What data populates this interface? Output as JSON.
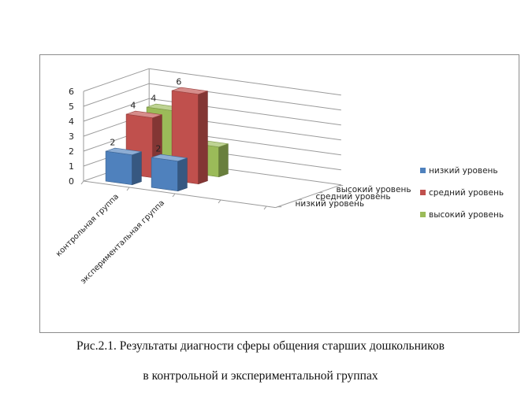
{
  "chart_data": {
    "type": "bar",
    "style": "3d-column",
    "categories": [
      "контрольная группа",
      "экспериментальная группа"
    ],
    "series": [
      {
        "name": "низкий уровень",
        "values": [
          2,
          2
        ],
        "color": "#4f81bd"
      },
      {
        "name": "средний уровень",
        "values": [
          4,
          6
        ],
        "color": "#c0504d"
      },
      {
        "name": "высокий уровень",
        "values": [
          4,
          2
        ],
        "color": "#9bbb59"
      }
    ],
    "depth_labels": [
      "высокий уровень",
      "средний уровень",
      "низкий уровень"
    ],
    "y_ticks": [
      "0",
      "1",
      "2",
      "3",
      "4",
      "5",
      "6"
    ],
    "ylim": [
      0,
      6
    ],
    "grid": true,
    "legend_position": "right",
    "data_labels": true
  },
  "caption": {
    "line1": "Рис.2.1. Результаты диагности сферы общения старших дошкольников",
    "line2": "в контрольной и экспериментальной группах"
  }
}
